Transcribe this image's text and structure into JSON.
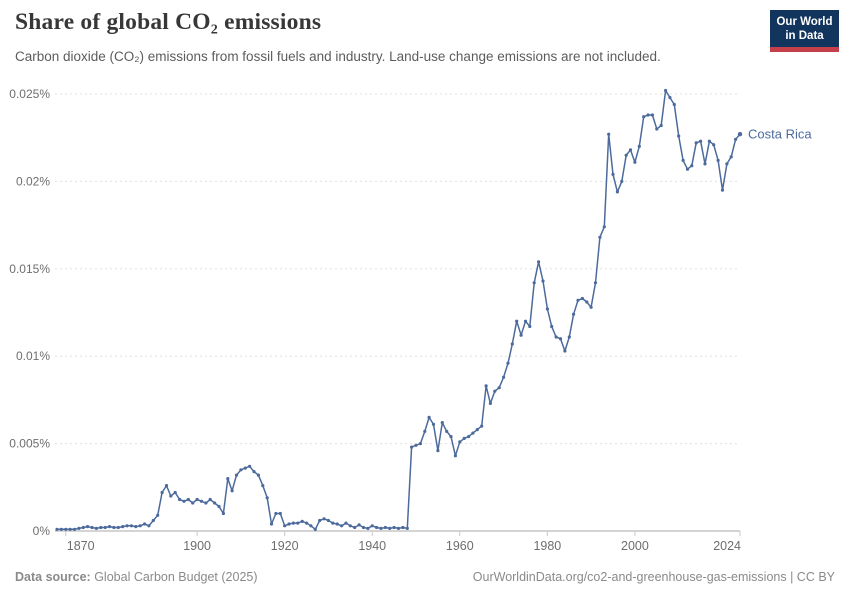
{
  "header": {
    "title": "Share of global CO₂ emissions",
    "subtitle": "Carbon dioxide (CO₂) emissions from fossil fuels and industry. Land-use change emissions are not included.",
    "logo": {
      "line1": "Our World",
      "line2": "in Data"
    }
  },
  "footer": {
    "source_label": "Data source:",
    "source_text": " Global Carbon Budget (2025)",
    "link_text": "OurWorldinData.org/co2-and-greenhouse-gas-emissions | CC BY"
  },
  "colors": {
    "line": "#4c6a9c",
    "entity_label": "#4c6a9c",
    "gridline": "#e0e0e0",
    "axis_line": "#a9a9a9",
    "tick_mark": "#c9c9c9",
    "axis_text": "#6e6e6e",
    "logo_navy": "#12355e",
    "logo_red": "#c6404c"
  },
  "chart_data": {
    "type": "line",
    "title": "Share of global CO₂ emissions",
    "subtitle": "Carbon dioxide (CO₂) emissions from fossil fuels and industry. Land-use change emissions are not included.",
    "unit": "%",
    "xlabel": "",
    "ylabel": "",
    "xlim": [
      1868,
      2024
    ],
    "ylim": [
      0,
      0.025
    ],
    "grid": "horizontal-dashed",
    "legend_position": "end-of-line-label",
    "yticks": [
      {
        "value": 0,
        "label": "0%"
      },
      {
        "value": 0.005,
        "label": "0.005%"
      },
      {
        "value": 0.01,
        "label": "0.01%"
      },
      {
        "value": 0.015,
        "label": "0.015%"
      },
      {
        "value": 0.02,
        "label": "0.02%"
      },
      {
        "value": 0.025,
        "label": "0.025%"
      }
    ],
    "xticks": [
      {
        "value": 1870,
        "label": "1870"
      },
      {
        "value": 1900,
        "label": "1900"
      },
      {
        "value": 1920,
        "label": "1920"
      },
      {
        "value": 1940,
        "label": "1940"
      },
      {
        "value": 1960,
        "label": "1960"
      },
      {
        "value": 1980,
        "label": "1980"
      },
      {
        "value": 2000,
        "label": "2000"
      },
      {
        "value": 2024,
        "label": "2024"
      }
    ],
    "series": [
      {
        "name": "Costa Rica",
        "points": [
          [
            1868,
            0.0001
          ],
          [
            1869,
            0.0001
          ],
          [
            1870,
            0.0001
          ],
          [
            1871,
            0.0001
          ],
          [
            1872,
            0.0001
          ],
          [
            1873,
            0.00015
          ],
          [
            1874,
            0.0002
          ],
          [
            1875,
            0.00025
          ],
          [
            1876,
            0.0002
          ],
          [
            1877,
            0.00015
          ],
          [
            1878,
            0.0002
          ],
          [
            1879,
            0.0002
          ],
          [
            1880,
            0.00025
          ],
          [
            1881,
            0.0002
          ],
          [
            1882,
            0.0002
          ],
          [
            1883,
            0.00025
          ],
          [
            1884,
            0.0003
          ],
          [
            1885,
            0.0003
          ],
          [
            1886,
            0.00025
          ],
          [
            1887,
            0.0003
          ],
          [
            1888,
            0.0004
          ],
          [
            1889,
            0.0003
          ],
          [
            1890,
            0.0006
          ],
          [
            1891,
            0.0009
          ],
          [
            1892,
            0.0022
          ],
          [
            1893,
            0.0026
          ],
          [
            1894,
            0.002
          ],
          [
            1895,
            0.0022
          ],
          [
            1896,
            0.0018
          ],
          [
            1897,
            0.0017
          ],
          [
            1898,
            0.0018
          ],
          [
            1899,
            0.0016
          ],
          [
            1900,
            0.0018
          ],
          [
            1901,
            0.0017
          ],
          [
            1902,
            0.0016
          ],
          [
            1903,
            0.0018
          ],
          [
            1904,
            0.0016
          ],
          [
            1905,
            0.0014
          ],
          [
            1906,
            0.001
          ],
          [
            1907,
            0.003
          ],
          [
            1908,
            0.0023
          ],
          [
            1909,
            0.0032
          ],
          [
            1910,
            0.0035
          ],
          [
            1911,
            0.0036
          ],
          [
            1912,
            0.0037
          ],
          [
            1913,
            0.0034
          ],
          [
            1914,
            0.0032
          ],
          [
            1915,
            0.0026
          ],
          [
            1916,
            0.0019
          ],
          [
            1917,
            0.0004
          ],
          [
            1918,
            0.001
          ],
          [
            1919,
            0.001
          ],
          [
            1920,
            0.0003
          ],
          [
            1921,
            0.0004
          ],
          [
            1922,
            0.00045
          ],
          [
            1923,
            0.00045
          ],
          [
            1924,
            0.00055
          ],
          [
            1925,
            0.00045
          ],
          [
            1926,
            0.0003
          ],
          [
            1927,
            0.0001
          ],
          [
            1928,
            0.0006
          ],
          [
            1929,
            0.0007
          ],
          [
            1930,
            0.0006
          ],
          [
            1931,
            0.00045
          ],
          [
            1932,
            0.0004
          ],
          [
            1933,
            0.0003
          ],
          [
            1934,
            0.00045
          ],
          [
            1935,
            0.0003
          ],
          [
            1936,
            0.0002
          ],
          [
            1937,
            0.00035
          ],
          [
            1938,
            0.0002
          ],
          [
            1939,
            0.00015
          ],
          [
            1940,
            0.0003
          ],
          [
            1941,
            0.0002
          ],
          [
            1942,
            0.00015
          ],
          [
            1943,
            0.0002
          ],
          [
            1944,
            0.00015
          ],
          [
            1945,
            0.0002
          ],
          [
            1946,
            0.00015
          ],
          [
            1947,
            0.0002
          ],
          [
            1948,
            0.00015
          ],
          [
            1949,
            0.0048
          ],
          [
            1950,
            0.0049
          ],
          [
            1951,
            0.005
          ],
          [
            1952,
            0.0057
          ],
          [
            1953,
            0.0065
          ],
          [
            1954,
            0.0061
          ],
          [
            1955,
            0.0046
          ],
          [
            1956,
            0.0062
          ],
          [
            1957,
            0.0057
          ],
          [
            1958,
            0.0054
          ],
          [
            1959,
            0.0043
          ],
          [
            1960,
            0.0051
          ],
          [
            1961,
            0.0053
          ],
          [
            1962,
            0.0054
          ],
          [
            1963,
            0.0056
          ],
          [
            1964,
            0.0058
          ],
          [
            1965,
            0.006
          ],
          [
            1966,
            0.0083
          ],
          [
            1967,
            0.0073
          ],
          [
            1968,
            0.008
          ],
          [
            1969,
            0.0082
          ],
          [
            1970,
            0.0088
          ],
          [
            1971,
            0.0096
          ],
          [
            1972,
            0.0107
          ],
          [
            1973,
            0.012
          ],
          [
            1974,
            0.0112
          ],
          [
            1975,
            0.012
          ],
          [
            1976,
            0.0117
          ],
          [
            1977,
            0.0142
          ],
          [
            1978,
            0.0154
          ],
          [
            1979,
            0.0143
          ],
          [
            1980,
            0.0127
          ],
          [
            1981,
            0.0117
          ],
          [
            1982,
            0.0111
          ],
          [
            1983,
            0.011
          ],
          [
            1984,
            0.0103
          ],
          [
            1985,
            0.0111
          ],
          [
            1986,
            0.0124
          ],
          [
            1987,
            0.0132
          ],
          [
            1988,
            0.0133
          ],
          [
            1989,
            0.0131
          ],
          [
            1990,
            0.0128
          ],
          [
            1991,
            0.0142
          ],
          [
            1992,
            0.0168
          ],
          [
            1993,
            0.0174
          ],
          [
            1994,
            0.0227
          ],
          [
            1995,
            0.0204
          ],
          [
            1996,
            0.0194
          ],
          [
            1997,
            0.02
          ],
          [
            1998,
            0.0215
          ],
          [
            1999,
            0.0218
          ],
          [
            2000,
            0.0211
          ],
          [
            2001,
            0.022
          ],
          [
            2002,
            0.0237
          ],
          [
            2003,
            0.0238
          ],
          [
            2004,
            0.0238
          ],
          [
            2005,
            0.023
          ],
          [
            2006,
            0.0232
          ],
          [
            2007,
            0.0252
          ],
          [
            2008,
            0.0248
          ],
          [
            2009,
            0.0244
          ],
          [
            2010,
            0.0226
          ],
          [
            2011,
            0.0212
          ],
          [
            2012,
            0.0207
          ],
          [
            2013,
            0.0209
          ],
          [
            2014,
            0.0222
          ],
          [
            2015,
            0.0223
          ],
          [
            2016,
            0.021
          ],
          [
            2017,
            0.0223
          ],
          [
            2018,
            0.0221
          ],
          [
            2019,
            0.0212
          ],
          [
            2020,
            0.0195
          ],
          [
            2021,
            0.021
          ],
          [
            2022,
            0.0214
          ],
          [
            2023,
            0.0224
          ],
          [
            2024,
            0.0227
          ]
        ]
      }
    ]
  }
}
